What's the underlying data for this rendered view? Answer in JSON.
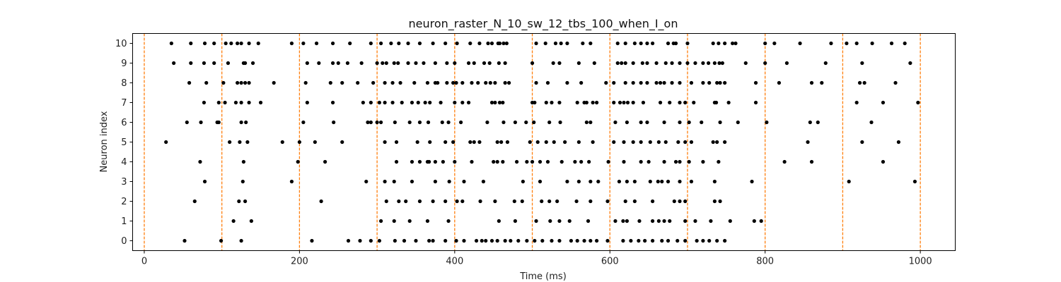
{
  "chart_data": {
    "type": "scatter",
    "title": "neuron_raster_N_10_sw_12_tbs_100_when_I_on",
    "xlabel": "Time (ms)",
    "ylabel": "Neuron index",
    "xlim": [
      -15,
      1045
    ],
    "ylim": [
      -0.5,
      10.5
    ],
    "xticks": [
      0,
      200,
      400,
      600,
      800,
      1000
    ],
    "yticks": [
      0,
      1,
      2,
      3,
      4,
      5,
      6,
      7,
      8,
      9,
      10
    ],
    "grid": false,
    "marker_color": "#000000",
    "vline_color": "#ff7f0e",
    "vlines": [
      0,
      100,
      200,
      300,
      400,
      500,
      600,
      700,
      800,
      900,
      1000
    ],
    "spikes": [
      {
        "neuron": 10,
        "times": [
          35,
          60,
          78,
          90,
          105,
          112,
          120,
          125,
          135,
          147,
          190,
          205,
          222,
          243,
          265,
          292,
          305,
          318,
          328,
          340,
          355,
          372,
          388,
          403,
          420,
          432,
          443,
          448,
          456,
          458,
          463,
          467,
          505,
          517,
          530,
          537,
          545,
          565,
          575,
          610,
          620,
          632,
          640,
          648,
          655,
          675,
          682,
          685,
          700,
          733,
          740,
          748,
          758,
          762,
          800,
          812,
          845,
          885,
          905,
          918,
          938,
          963,
          980
        ]
      },
      {
        "neuron": 9,
        "times": [
          38,
          60,
          77,
          90,
          108,
          128,
          130,
          140,
          210,
          225,
          243,
          250,
          262,
          280,
          300,
          307,
          312,
          322,
          327,
          340,
          350,
          360,
          375,
          390,
          400,
          418,
          425,
          438,
          445,
          457,
          465,
          500,
          527,
          535,
          560,
          580,
          610,
          615,
          620,
          630,
          642,
          648,
          660,
          672,
          680,
          690,
          700,
          710,
          720,
          727,
          735,
          741,
          745,
          775,
          800,
          828,
          878,
          925,
          987
        ]
      },
      {
        "neuron": 8,
        "times": [
          58,
          80,
          102,
          120,
          125,
          130,
          135,
          167,
          208,
          240,
          255,
          275,
          295,
          310,
          320,
          330,
          348,
          365,
          375,
          378,
          390,
          398,
          402,
          410,
          422,
          430,
          440,
          446,
          452,
          465,
          470,
          505,
          520,
          545,
          563,
          595,
          605,
          620,
          630,
          640,
          648,
          660,
          665,
          670,
          680,
          690,
          705,
          720,
          728,
          738,
          742,
          748,
          788,
          818,
          860,
          873,
          922,
          928,
          968
        ]
      },
      {
        "neuron": 7,
        "times": [
          77,
          96,
          104,
          118,
          125,
          135,
          150,
          210,
          243,
          282,
          292,
          303,
          310,
          320,
          332,
          345,
          353,
          362,
          368,
          382,
          400,
          410,
          418,
          448,
          452,
          458,
          462,
          500,
          503,
          518,
          525,
          535,
          558,
          567,
          570,
          578,
          583,
          605,
          613,
          618,
          623,
          630,
          643,
          665,
          677,
          690,
          697,
          708,
          735,
          737,
          753,
          788,
          918,
          952,
          997
        ]
      },
      {
        "neuron": 6,
        "times": [
          55,
          73,
          94,
          96,
          125,
          131,
          205,
          244,
          288,
          292,
          300,
          305,
          323,
          342,
          355,
          366,
          384,
          392,
          408,
          442,
          463,
          478,
          492,
          502,
          522,
          536,
          570,
          575,
          607,
          622,
          640,
          648,
          670,
          690,
          702,
          718,
          742,
          765,
          802,
          858,
          868,
          937
        ]
      },
      {
        "neuron": 5,
        "times": [
          28,
          110,
          123,
          133,
          178,
          200,
          220,
          255,
          310,
          325,
          352,
          368,
          388,
          398,
          420,
          425,
          432,
          468,
          455,
          460,
          497,
          507,
          518,
          528,
          542,
          560,
          578,
          605,
          618,
          630,
          640,
          652,
          663,
          672,
          688,
          697,
          705,
          733,
          738,
          748,
          855,
          925,
          972
        ]
      },
      {
        "neuron": 4,
        "times": [
          72,
          128,
          198,
          233,
          325,
          345,
          355,
          365,
          367,
          375,
          385,
          400,
          422,
          450,
          455,
          462,
          480,
          493,
          500,
          510,
          520,
          538,
          555,
          563,
          573,
          598,
          618,
          640,
          650,
          670,
          685,
          690,
          702,
          720,
          740,
          825,
          860,
          952
        ]
      },
      {
        "neuron": 3,
        "times": [
          78,
          127,
          190,
          286,
          310,
          322,
          345,
          375,
          393,
          412,
          437,
          488,
          510,
          545,
          560,
          575,
          585,
          612,
          622,
          632,
          652,
          662,
          667,
          675,
          690,
          705,
          735,
          783,
          908,
          993
        ]
      },
      {
        "neuron": 2,
        "times": [
          65,
          122,
          130,
          228,
          312,
          328,
          337,
          355,
          372,
          388,
          403,
          410,
          433,
          452,
          477,
          487,
          512,
          522,
          532,
          557,
          575,
          597,
          620,
          632,
          655,
          683,
          690,
          697,
          735,
          742
        ]
      },
      {
        "neuron": 1,
        "times": [
          115,
          138,
          305,
          322,
          342,
          365,
          392,
          457,
          478,
          505,
          523,
          535,
          548,
          572,
          607,
          617,
          622,
          638,
          655,
          663,
          670,
          677,
          697,
          710,
          730,
          755,
          786,
          795
        ]
      },
      {
        "neuron": 0,
        "times": [
          52,
          99,
          125,
          216,
          263,
          278,
          292,
          303,
          323,
          335,
          350,
          367,
          372,
          388,
          402,
          412,
          428,
          435,
          440,
          448,
          455,
          465,
          472,
          482,
          493,
          503,
          513,
          525,
          535,
          550,
          558,
          567,
          575,
          583,
          597,
          617,
          627,
          637,
          645,
          655,
          667,
          675,
          687,
          697,
          712,
          720,
          728,
          738,
          748
        ]
      }
    ]
  }
}
